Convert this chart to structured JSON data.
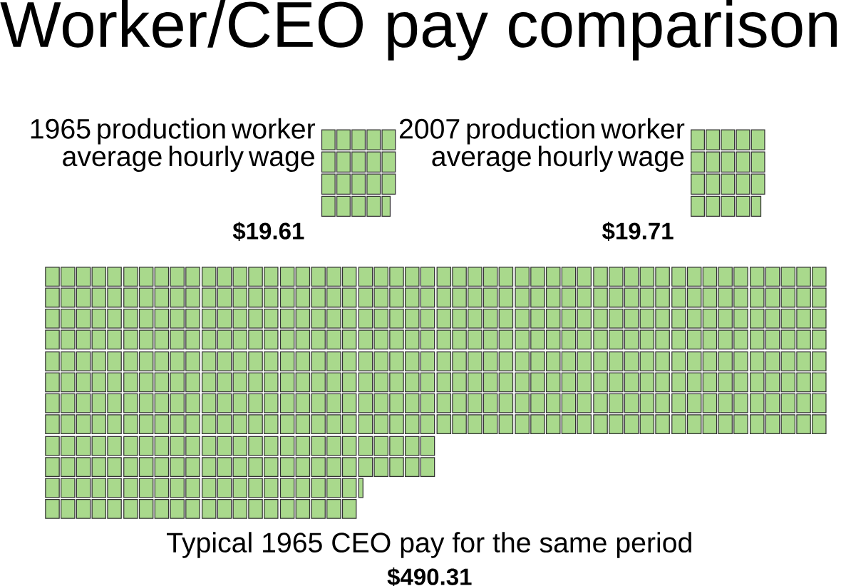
{
  "chart_data": {
    "type": "other",
    "title": "Worker/CEO pay comparison",
    "categories": [
      "1965 production worker average hourly wage",
      "2007 production worker average hourly wage",
      "Typical 1965 CEO pay for the same period"
    ],
    "values": [
      19.61,
      19.71,
      490.31
    ],
    "value_labels": [
      "$19.61",
      "$19.71",
      "$490.31"
    ],
    "colors": [
      "#a9d98c",
      "#a9d98c",
      "#a9d98c"
    ]
  }
}
